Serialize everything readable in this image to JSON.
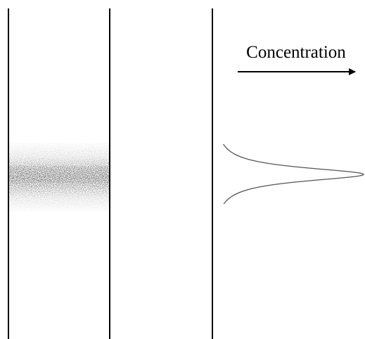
{
  "annotation": {
    "label": "Concentration"
  }
}
